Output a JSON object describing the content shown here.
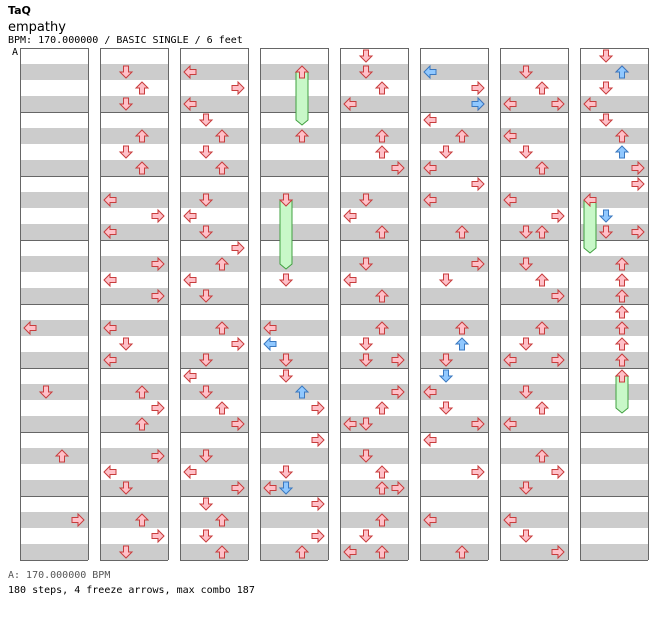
{
  "header": {
    "artist": "TaQ",
    "title": "empathy",
    "info": "BPM: 170.000000 / BASIC SINGLE / 6 feet",
    "marker": "A"
  },
  "footer": {
    "bpm_line": "A: 170.000000 BPM",
    "stats_line": "180 steps, 4 freeze arrows, max combo 187"
  },
  "colors": {
    "band_gray": "#cccccc",
    "arrow_red_fill": "#ffc0c8",
    "arrow_red_stroke": "#c83c3c",
    "arrow_blue_fill": "#90c8ff",
    "arrow_blue_stroke": "#3a78c0",
    "freeze_fill": "#c8f8c8",
    "freeze_stroke": "#40a040"
  },
  "chart_data": {
    "type": "table",
    "lanes": [
      "left",
      "down",
      "up",
      "right"
    ],
    "columns": 8,
    "measures_per_column": 8,
    "rows_per_measure": 4,
    "notes": [
      {
        "c": 0,
        "r": 17,
        "l": 0,
        "k": "n"
      },
      {
        "c": 0,
        "r": 21,
        "l": 1,
        "k": "n"
      },
      {
        "c": 0,
        "r": 25,
        "l": 2,
        "k": "n"
      },
      {
        "c": 0,
        "r": 29,
        "l": 3,
        "k": "n"
      },
      {
        "c": 1,
        "r": 1,
        "l": 1,
        "k": "n"
      },
      {
        "c": 1,
        "r": 2,
        "l": 2,
        "k": "n"
      },
      {
        "c": 1,
        "r": 3,
        "l": 1,
        "k": "n"
      },
      {
        "c": 1,
        "r": 5,
        "l": 2,
        "k": "n"
      },
      {
        "c": 1,
        "r": 6,
        "l": 1,
        "k": "n"
      },
      {
        "c": 1,
        "r": 7,
        "l": 2,
        "k": "n"
      },
      {
        "c": 1,
        "r": 9,
        "l": 0,
        "k": "n"
      },
      {
        "c": 1,
        "r": 10,
        "l": 3,
        "k": "n"
      },
      {
        "c": 1,
        "r": 11,
        "l": 0,
        "k": "n"
      },
      {
        "c": 1,
        "r": 13,
        "l": 3,
        "k": "n"
      },
      {
        "c": 1,
        "r": 14,
        "l": 0,
        "k": "n"
      },
      {
        "c": 1,
        "r": 15,
        "l": 3,
        "k": "n"
      },
      {
        "c": 1,
        "r": 17,
        "l": 0,
        "k": "n"
      },
      {
        "c": 1,
        "r": 18,
        "l": 1,
        "k": "n"
      },
      {
        "c": 1,
        "r": 19,
        "l": 0,
        "k": "n"
      },
      {
        "c": 1,
        "r": 21,
        "l": 2,
        "k": "n"
      },
      {
        "c": 1,
        "r": 22,
        "l": 3,
        "k": "n"
      },
      {
        "c": 1,
        "r": 23,
        "l": 2,
        "k": "n"
      },
      {
        "c": 1,
        "r": 25,
        "l": 3,
        "k": "n"
      },
      {
        "c": 1,
        "r": 26,
        "l": 0,
        "k": "n"
      },
      {
        "c": 1,
        "r": 27,
        "l": 1,
        "k": "n"
      },
      {
        "c": 1,
        "r": 29,
        "l": 2,
        "k": "n"
      },
      {
        "c": 1,
        "r": 30,
        "l": 3,
        "k": "n"
      },
      {
        "c": 1,
        "r": 31,
        "l": 1,
        "k": "n"
      },
      {
        "c": 2,
        "r": 1,
        "l": 0,
        "k": "n"
      },
      {
        "c": 2,
        "r": 2,
        "l": 3,
        "k": "n"
      },
      {
        "c": 2,
        "r": 3,
        "l": 0,
        "k": "n"
      },
      {
        "c": 2,
        "r": 4,
        "l": 1,
        "k": "n"
      },
      {
        "c": 2,
        "r": 5,
        "l": 2,
        "k": "n"
      },
      {
        "c": 2,
        "r": 6,
        "l": 1,
        "k": "n"
      },
      {
        "c": 2,
        "r": 7,
        "l": 2,
        "k": "n"
      },
      {
        "c": 2,
        "r": 9,
        "l": 1,
        "k": "n"
      },
      {
        "c": 2,
        "r": 10,
        "l": 0,
        "k": "n"
      },
      {
        "c": 2,
        "r": 11,
        "l": 1,
        "k": "n"
      },
      {
        "c": 2,
        "r": 12,
        "l": 3,
        "k": "n"
      },
      {
        "c": 2,
        "r": 13,
        "l": 2,
        "k": "n"
      },
      {
        "c": 2,
        "r": 14,
        "l": 0,
        "k": "n"
      },
      {
        "c": 2,
        "r": 15,
        "l": 1,
        "k": "n"
      },
      {
        "c": 2,
        "r": 17,
        "l": 2,
        "k": "n"
      },
      {
        "c": 2,
        "r": 18,
        "l": 3,
        "k": "n"
      },
      {
        "c": 2,
        "r": 19,
        "l": 1,
        "k": "n"
      },
      {
        "c": 2,
        "r": 20,
        "l": 0,
        "k": "n"
      },
      {
        "c": 2,
        "r": 21,
        "l": 1,
        "k": "n"
      },
      {
        "c": 2,
        "r": 22,
        "l": 2,
        "k": "n"
      },
      {
        "c": 2,
        "r": 23,
        "l": 3,
        "k": "n"
      },
      {
        "c": 2,
        "r": 25,
        "l": 1,
        "k": "n"
      },
      {
        "c": 2,
        "r": 26,
        "l": 0,
        "k": "n"
      },
      {
        "c": 2,
        "r": 27,
        "l": 3,
        "k": "n"
      },
      {
        "c": 2,
        "r": 28,
        "l": 1,
        "k": "n"
      },
      {
        "c": 2,
        "r": 29,
        "l": 2,
        "k": "n"
      },
      {
        "c": 2,
        "r": 30,
        "l": 1,
        "k": "n"
      },
      {
        "c": 2,
        "r": 31,
        "l": 2,
        "k": "n"
      },
      {
        "c": 3,
        "r": 1,
        "l": 2,
        "k": "f",
        "len": 3
      },
      {
        "c": 3,
        "r": 5,
        "l": 2,
        "k": "n"
      },
      {
        "c": 3,
        "r": 9,
        "l": 1,
        "k": "f",
        "len": 4
      },
      {
        "c": 3,
        "r": 14,
        "l": 1,
        "k": "n"
      },
      {
        "c": 3,
        "r": 17,
        "l": 0,
        "k": "n"
      },
      {
        "c": 3,
        "r": 18,
        "l": 0,
        "k": "b"
      },
      {
        "c": 3,
        "r": 19,
        "l": 1,
        "k": "n"
      },
      {
        "c": 3,
        "r": 20,
        "l": 1,
        "k": "n"
      },
      {
        "c": 3,
        "r": 21,
        "l": 2,
        "k": "b"
      },
      {
        "c": 3,
        "r": 22,
        "l": 3,
        "k": "n"
      },
      {
        "c": 3,
        "r": 24,
        "l": 3,
        "k": "n"
      },
      {
        "c": 3,
        "r": 26,
        "l": 1,
        "k": "n"
      },
      {
        "c": 3,
        "r": 27,
        "l": 0,
        "k": "n"
      },
      {
        "c": 3,
        "r": 27,
        "l": 1,
        "k": "b"
      },
      {
        "c": 3,
        "r": 28,
        "l": 3,
        "k": "n"
      },
      {
        "c": 3,
        "r": 30,
        "l": 3,
        "k": "n"
      },
      {
        "c": 3,
        "r": 31,
        "l": 2,
        "k": "n"
      },
      {
        "c": 4,
        "r": 0,
        "l": 1,
        "k": "n"
      },
      {
        "c": 4,
        "r": 1,
        "l": 1,
        "k": "n"
      },
      {
        "c": 4,
        "r": 2,
        "l": 2,
        "k": "n"
      },
      {
        "c": 4,
        "r": 3,
        "l": 0,
        "k": "n"
      },
      {
        "c": 4,
        "r": 5,
        "l": 2,
        "k": "n"
      },
      {
        "c": 4,
        "r": 6,
        "l": 2,
        "k": "n"
      },
      {
        "c": 4,
        "r": 7,
        "l": 3,
        "k": "n"
      },
      {
        "c": 4,
        "r": 9,
        "l": 1,
        "k": "n"
      },
      {
        "c": 4,
        "r": 10,
        "l": 0,
        "k": "n"
      },
      {
        "c": 4,
        "r": 11,
        "l": 2,
        "k": "n"
      },
      {
        "c": 4,
        "r": 13,
        "l": 1,
        "k": "n"
      },
      {
        "c": 4,
        "r": 14,
        "l": 0,
        "k": "n"
      },
      {
        "c": 4,
        "r": 15,
        "l": 2,
        "k": "n"
      },
      {
        "c": 4,
        "r": 17,
        "l": 2,
        "k": "n"
      },
      {
        "c": 4,
        "r": 18,
        "l": 1,
        "k": "n"
      },
      {
        "c": 4,
        "r": 19,
        "l": 3,
        "k": "n"
      },
      {
        "c": 4,
        "r": 19,
        "l": 1,
        "k": "n"
      },
      {
        "c": 4,
        "r": 21,
        "l": 3,
        "k": "n"
      },
      {
        "c": 4,
        "r": 22,
        "l": 2,
        "k": "n"
      },
      {
        "c": 4,
        "r": 23,
        "l": 0,
        "k": "n"
      },
      {
        "c": 4,
        "r": 23,
        "l": 1,
        "k": "n"
      },
      {
        "c": 4,
        "r": 25,
        "l": 1,
        "k": "n"
      },
      {
        "c": 4,
        "r": 26,
        "l": 2,
        "k": "n"
      },
      {
        "c": 4,
        "r": 27,
        "l": 2,
        "k": "n"
      },
      {
        "c": 4,
        "r": 27,
        "l": 3,
        "k": "n"
      },
      {
        "c": 4,
        "r": 29,
        "l": 2,
        "k": "n"
      },
      {
        "c": 4,
        "r": 30,
        "l": 1,
        "k": "n"
      },
      {
        "c": 4,
        "r": 31,
        "l": 0,
        "k": "n"
      },
      {
        "c": 4,
        "r": 31,
        "l": 2,
        "k": "n"
      },
      {
        "c": 5,
        "r": 1,
        "l": 0,
        "k": "b"
      },
      {
        "c": 5,
        "r": 2,
        "l": 3,
        "k": "n"
      },
      {
        "c": 5,
        "r": 3,
        "l": 3,
        "k": "n"
      },
      {
        "c": 5,
        "r": 3,
        "l": 3,
        "k": "b"
      },
      {
        "c": 5,
        "r": 4,
        "l": 0,
        "k": "n"
      },
      {
        "c": 5,
        "r": 5,
        "l": 2,
        "k": "n"
      },
      {
        "c": 5,
        "r": 6,
        "l": 1,
        "k": "n"
      },
      {
        "c": 5,
        "r": 7,
        "l": 0,
        "k": "n"
      },
      {
        "c": 5,
        "r": 8,
        "l": 3,
        "k": "n"
      },
      {
        "c": 5,
        "r": 9,
        "l": 0,
        "k": "n"
      },
      {
        "c": 5,
        "r": 11,
        "l": 2,
        "k": "n"
      },
      {
        "c": 5,
        "r": 13,
        "l": 3,
        "k": "n"
      },
      {
        "c": 5,
        "r": 14,
        "l": 1,
        "k": "n"
      },
      {
        "c": 5,
        "r": 17,
        "l": 2,
        "k": "n"
      },
      {
        "c": 5,
        "r": 18,
        "l": 2,
        "k": "b"
      },
      {
        "c": 5,
        "r": 19,
        "l": 1,
        "k": "n"
      },
      {
        "c": 5,
        "r": 20,
        "l": 1,
        "k": "b"
      },
      {
        "c": 5,
        "r": 21,
        "l": 0,
        "k": "n"
      },
      {
        "c": 5,
        "r": 22,
        "l": 1,
        "k": "n"
      },
      {
        "c": 5,
        "r": 23,
        "l": 3,
        "k": "n"
      },
      {
        "c": 5,
        "r": 24,
        "l": 0,
        "k": "n"
      },
      {
        "c": 5,
        "r": 26,
        "l": 3,
        "k": "n"
      },
      {
        "c": 5,
        "r": 29,
        "l": 0,
        "k": "n"
      },
      {
        "c": 5,
        "r": 31,
        "l": 2,
        "k": "n"
      },
      {
        "c": 6,
        "r": 1,
        "l": 1,
        "k": "n"
      },
      {
        "c": 6,
        "r": 2,
        "l": 2,
        "k": "n"
      },
      {
        "c": 6,
        "r": 3,
        "l": 0,
        "k": "n"
      },
      {
        "c": 6,
        "r": 3,
        "l": 3,
        "k": "n"
      },
      {
        "c": 6,
        "r": 5,
        "l": 0,
        "k": "n"
      },
      {
        "c": 6,
        "r": 6,
        "l": 1,
        "k": "n"
      },
      {
        "c": 6,
        "r": 7,
        "l": 2,
        "k": "n"
      },
      {
        "c": 6,
        "r": 9,
        "l": 0,
        "k": "n"
      },
      {
        "c": 6,
        "r": 10,
        "l": 3,
        "k": "n"
      },
      {
        "c": 6,
        "r": 11,
        "l": 1,
        "k": "n"
      },
      {
        "c": 6,
        "r": 11,
        "l": 2,
        "k": "n"
      },
      {
        "c": 6,
        "r": 13,
        "l": 1,
        "k": "n"
      },
      {
        "c": 6,
        "r": 14,
        "l": 2,
        "k": "n"
      },
      {
        "c": 6,
        "r": 15,
        "l": 3,
        "k": "n"
      },
      {
        "c": 6,
        "r": 17,
        "l": 2,
        "k": "n"
      },
      {
        "c": 6,
        "r": 18,
        "l": 1,
        "k": "n"
      },
      {
        "c": 6,
        "r": 19,
        "l": 0,
        "k": "n"
      },
      {
        "c": 6,
        "r": 19,
        "l": 3,
        "k": "n"
      },
      {
        "c": 6,
        "r": 21,
        "l": 1,
        "k": "n"
      },
      {
        "c": 6,
        "r": 22,
        "l": 2,
        "k": "n"
      },
      {
        "c": 6,
        "r": 23,
        "l": 0,
        "k": "n"
      },
      {
        "c": 6,
        "r": 25,
        "l": 2,
        "k": "n"
      },
      {
        "c": 6,
        "r": 26,
        "l": 3,
        "k": "n"
      },
      {
        "c": 6,
        "r": 27,
        "l": 1,
        "k": "n"
      },
      {
        "c": 6,
        "r": 29,
        "l": 0,
        "k": "n"
      },
      {
        "c": 6,
        "r": 30,
        "l": 1,
        "k": "n"
      },
      {
        "c": 6,
        "r": 31,
        "l": 3,
        "k": "n"
      },
      {
        "c": 7,
        "r": 0,
        "l": 1,
        "k": "n"
      },
      {
        "c": 7,
        "r": 1,
        "l": 2,
        "k": "n"
      },
      {
        "c": 7,
        "r": 1,
        "l": 2,
        "k": "b"
      },
      {
        "c": 7,
        "r": 2,
        "l": 1,
        "k": "n"
      },
      {
        "c": 7,
        "r": 3,
        "l": 0,
        "k": "n"
      },
      {
        "c": 7,
        "r": 4,
        "l": 1,
        "k": "n"
      },
      {
        "c": 7,
        "r": 5,
        "l": 2,
        "k": "n"
      },
      {
        "c": 7,
        "r": 6,
        "l": 2,
        "k": "b"
      },
      {
        "c": 7,
        "r": 7,
        "l": 3,
        "k": "n"
      },
      {
        "c": 7,
        "r": 8,
        "l": 3,
        "k": "n"
      },
      {
        "c": 7,
        "r": 9,
        "l": 0,
        "k": "f",
        "len": 3
      },
      {
        "c": 7,
        "r": 10,
        "l": 1,
        "k": "b"
      },
      {
        "c": 7,
        "r": 11,
        "l": 1,
        "k": "n"
      },
      {
        "c": 7,
        "r": 11,
        "l": 3,
        "k": "n"
      },
      {
        "c": 7,
        "r": 13,
        "l": 2,
        "k": "n"
      },
      {
        "c": 7,
        "r": 14,
        "l": 2,
        "k": "n"
      },
      {
        "c": 7,
        "r": 15,
        "l": 2,
        "k": "n"
      },
      {
        "c": 7,
        "r": 16,
        "l": 2,
        "k": "n"
      },
      {
        "c": 7,
        "r": 17,
        "l": 2,
        "k": "n"
      },
      {
        "c": 7,
        "r": 18,
        "l": 2,
        "k": "n"
      },
      {
        "c": 7,
        "r": 19,
        "l": 2,
        "k": "n"
      },
      {
        "c": 7,
        "r": 20,
        "l": 2,
        "k": "f",
        "len": 2
      }
    ]
  }
}
